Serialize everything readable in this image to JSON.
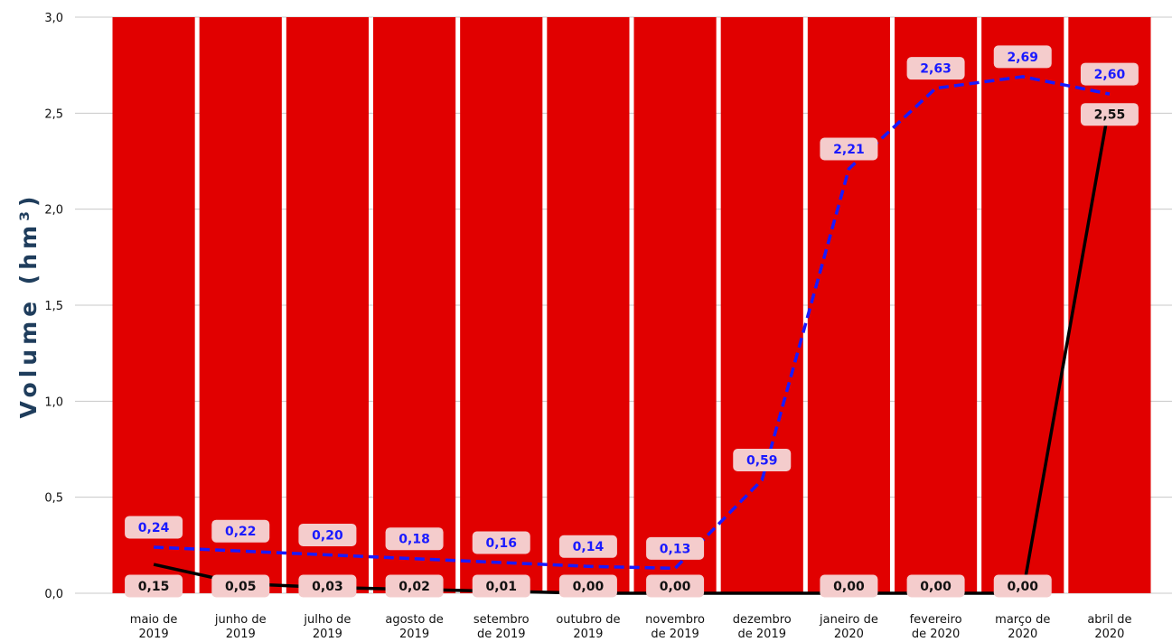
{
  "chart_data": {
    "type": "line",
    "ylabel": "Volume (hm³)",
    "xlabel": "",
    "ylim": [
      0,
      3.0
    ],
    "yticks": [
      "0,0",
      "0,5",
      "1,0",
      "1,5",
      "2,0",
      "2,5",
      "3,0"
    ],
    "grid": true,
    "categories": [
      [
        "maio de",
        "2019"
      ],
      [
        "junho de",
        "2019"
      ],
      [
        "julho de",
        "2019"
      ],
      [
        "agosto de",
        "2019"
      ],
      [
        "setembro",
        "de 2019"
      ],
      [
        "outubro de",
        "2019"
      ],
      [
        "novembro",
        "de 2019"
      ],
      [
        "dezembro",
        "de 2019"
      ],
      [
        "janeiro de",
        "2020"
      ],
      [
        "fevereiro",
        "de 2020"
      ],
      [
        "março de",
        "2020"
      ],
      [
        "abril de",
        "2020"
      ]
    ],
    "background_columns": {
      "color": "#e10000",
      "count": 12
    },
    "series": [
      {
        "style": "dashed",
        "color": "#1a1aff",
        "values": [
          0.24,
          0.22,
          0.2,
          0.18,
          0.16,
          0.14,
          0.13,
          0.59,
          2.21,
          2.63,
          2.69,
          2.6
        ],
        "labels": [
          "0,24",
          "0,22",
          "0,20",
          "0,18",
          "0,16",
          "0,14",
          "0,13",
          "0,59",
          "2,21",
          "2,63",
          "2,69",
          "2,60"
        ]
      },
      {
        "style": "solid",
        "color": "#000000",
        "values": [
          0.15,
          0.05,
          0.03,
          0.02,
          0.01,
          0.0,
          0.0,
          null,
          0.0,
          0.0,
          0.0,
          2.55
        ],
        "labels": [
          "0,15",
          "0,05",
          "0,03",
          "0,02",
          "0,01",
          "0,00",
          "0,00",
          null,
          "0,00",
          "0,00",
          "0,00",
          "2,55"
        ]
      }
    ]
  }
}
